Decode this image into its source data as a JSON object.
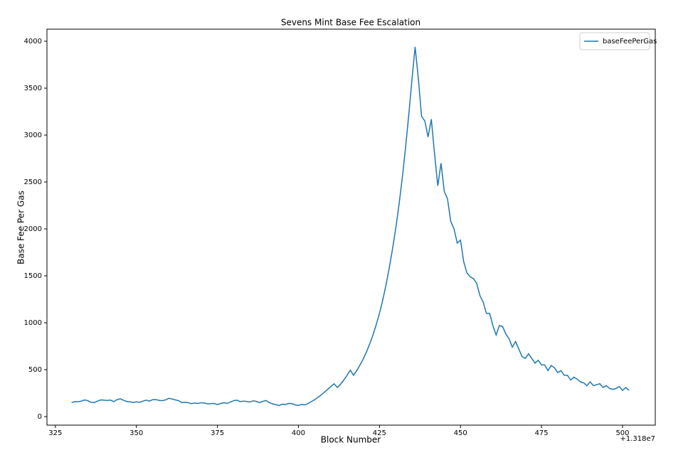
{
  "chart_data": {
    "type": "line",
    "title": "Sevens Mint Base Fee Escalation",
    "x_label": "Block Number",
    "y_label": "Base Fee Per Gas",
    "x_offset_label": "+1.318e7",
    "x": [
      330,
      331,
      332,
      333,
      334,
      335,
      336,
      337,
      338,
      339,
      340,
      341,
      342,
      343,
      344,
      345,
      346,
      347,
      348,
      349,
      350,
      351,
      352,
      353,
      354,
      355,
      356,
      357,
      358,
      359,
      360,
      361,
      362,
      363,
      364,
      365,
      366,
      367,
      368,
      369,
      370,
      371,
      372,
      373,
      374,
      375,
      376,
      377,
      378,
      379,
      380,
      381,
      382,
      383,
      384,
      385,
      386,
      387,
      388,
      389,
      390,
      391,
      392,
      393,
      394,
      395,
      396,
      397,
      398,
      399,
      400,
      401,
      402,
      403,
      404,
      405,
      406,
      407,
      408,
      409,
      410,
      411,
      412,
      413,
      414,
      415,
      416,
      417,
      418,
      419,
      420,
      421,
      422,
      423,
      424,
      425,
      426,
      427,
      428,
      429,
      430,
      431,
      432,
      433,
      434,
      435,
      436,
      437,
      438,
      439,
      440,
      441,
      442,
      443,
      444,
      445,
      446,
      447,
      448,
      449,
      450,
      451,
      452,
      453,
      454,
      455,
      456,
      457,
      458,
      459,
      460,
      461,
      462,
      463,
      464,
      465,
      466,
      467,
      468,
      469,
      470,
      471,
      472,
      473,
      474,
      475,
      476,
      477,
      478,
      479,
      480,
      481,
      482,
      483,
      484,
      485,
      486,
      487,
      488,
      489,
      490,
      491,
      492,
      493,
      494,
      495,
      496,
      497,
      498,
      499,
      500,
      501,
      502
    ],
    "series": [
      {
        "name": "baseFeePerGas",
        "color": "#1f77b4",
        "values": [
          150,
          160,
          158,
          165,
          178,
          170,
          152,
          150,
          165,
          178,
          175,
          172,
          176,
          160,
          180,
          190,
          175,
          160,
          158,
          150,
          158,
          152,
          165,
          175,
          165,
          180,
          182,
          172,
          170,
          178,
          195,
          188,
          178,
          170,
          150,
          152,
          148,
          138,
          145,
          140,
          148,
          145,
          135,
          138,
          140,
          128,
          140,
          148,
          140,
          155,
          170,
          175,
          160,
          165,
          162,
          155,
          168,
          162,
          150,
          162,
          172,
          150,
          135,
          128,
          118,
          132,
          130,
          140,
          138,
          125,
          118,
          130,
          125,
          140,
          160,
          180,
          205,
          230,
          260,
          290,
          320,
          350,
          310,
          345,
          390,
          440,
          495,
          440,
          490,
          550,
          615,
          690,
          775,
          870,
          980,
          1100,
          1240,
          1400,
          1580,
          1780,
          2000,
          2250,
          2530,
          2850,
          3200,
          3580,
          3940,
          3600,
          3200,
          3150,
          2980,
          3170,
          2800,
          2460,
          2700,
          2400,
          2320,
          2080,
          2000,
          1850,
          1880,
          1650,
          1530,
          1490,
          1470,
          1420,
          1290,
          1220,
          1100,
          1100,
          970,
          870,
          970,
          960,
          880,
          830,
          740,
          800,
          720,
          640,
          620,
          670,
          620,
          570,
          600,
          550,
          550,
          490,
          545,
          520,
          470,
          490,
          440,
          440,
          390,
          420,
          400,
          370,
          360,
          330,
          370,
          330,
          340,
          350,
          310,
          330,
          300,
          290,
          300,
          320,
          280,
          310,
          280
        ]
      }
    ],
    "xlim": [
      322.4,
      510.1
    ],
    "ylim": [
      -91,
      4129
    ],
    "xticks": [
      325,
      350,
      375,
      400,
      425,
      450,
      475,
      500
    ],
    "yticks": [
      0,
      500,
      1000,
      1500,
      2000,
      2500,
      3000,
      3500,
      4000
    ],
    "legend": "upper right",
    "grid": false
  }
}
